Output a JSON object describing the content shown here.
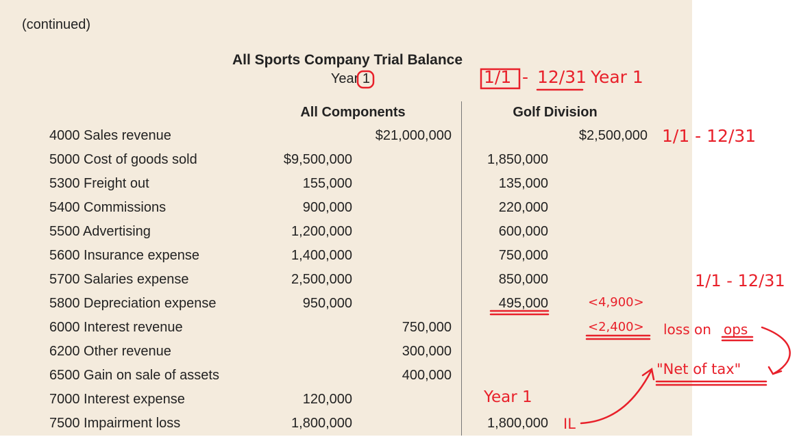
{
  "continued": "(continued)",
  "title": "All Sports Company Trial Balance",
  "year": "Year 1",
  "columns": {
    "all": "All Components",
    "golf": "Golf Division"
  },
  "rows": [
    {
      "account": "4000 Sales revenue",
      "all_debit": "",
      "all_credit": "$21,000,000",
      "golf_debit": "",
      "golf_credit": "$2,500,000"
    },
    {
      "account": "5000 Cost of goods sold",
      "all_debit": "$9,500,000",
      "all_credit": "",
      "golf_debit": "1,850,000",
      "golf_credit": ""
    },
    {
      "account": "5300 Freight out",
      "all_debit": "155,000",
      "all_credit": "",
      "golf_debit": "135,000",
      "golf_credit": ""
    },
    {
      "account": "5400 Commissions",
      "all_debit": "900,000",
      "all_credit": "",
      "golf_debit": "220,000",
      "golf_credit": ""
    },
    {
      "account": "5500 Advertising",
      "all_debit": "1,200,000",
      "all_credit": "",
      "golf_debit": "600,000",
      "golf_credit": ""
    },
    {
      "account": "5600 Insurance expense",
      "all_debit": "1,400,000",
      "all_credit": "",
      "golf_debit": "750,000",
      "golf_credit": ""
    },
    {
      "account": "5700 Salaries expense",
      "all_debit": "2,500,000",
      "all_credit": "",
      "golf_debit": "850,000",
      "golf_credit": ""
    },
    {
      "account": "5800 Depreciation expense",
      "all_debit": "950,000",
      "all_credit": "",
      "golf_debit": "495,000",
      "golf_credit": ""
    },
    {
      "account": "6000 Interest revenue",
      "all_debit": "",
      "all_credit": "750,000",
      "golf_debit": "",
      "golf_credit": ""
    },
    {
      "account": "6200 Other revenue",
      "all_debit": "",
      "all_credit": "300,000",
      "golf_debit": "",
      "golf_credit": ""
    },
    {
      "account": "6500 Gain on sale of assets",
      "all_debit": "",
      "all_credit": "400,000",
      "golf_debit": "",
      "golf_credit": ""
    },
    {
      "account": "7000 Interest expense",
      "all_debit": "120,000",
      "all_credit": "",
      "golf_debit": "",
      "golf_credit": ""
    },
    {
      "account": "7500 Impairment loss",
      "all_debit": "1,800,000",
      "all_credit": "",
      "golf_debit": "1,800,000",
      "golf_credit": ""
    }
  ],
  "annotations": {
    "period_top": "1/1",
    "period_dash": "-",
    "period_end": "12/31",
    "period_year": "Year 1",
    "sales_period": "1/1 - 12/31",
    "right_period": "1/1 - 12/31",
    "loss_amount": "<4,900>",
    "net_loss": "<2,400>",
    "loss_label": "loss on",
    "loss_ops": "ops",
    "net_of_tax": "\"Net of tax\"",
    "year_1": "Year 1",
    "il": "IL",
    "color": "#e8202a"
  }
}
